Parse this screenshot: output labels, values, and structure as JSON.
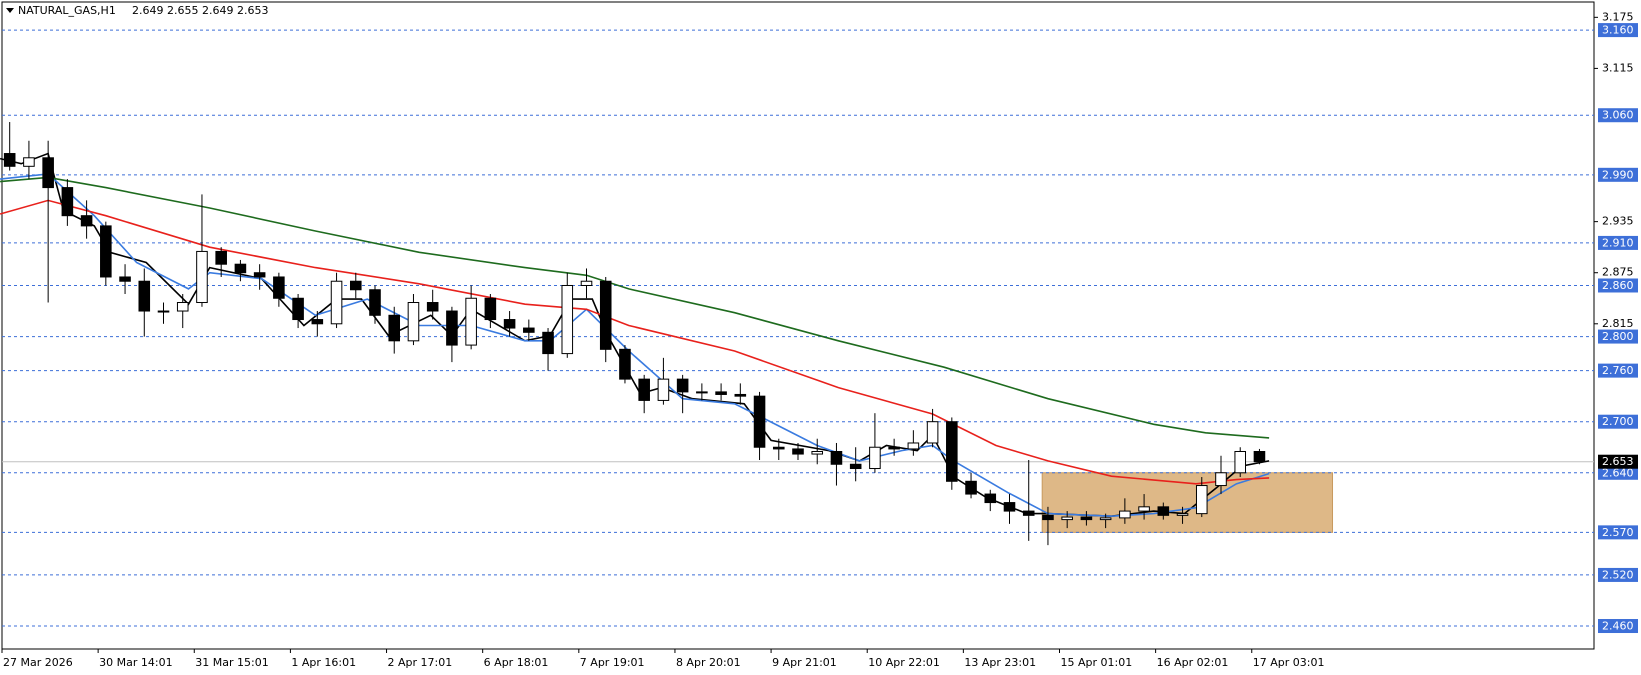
{
  "chart_data": {
    "type": "candlestick",
    "title": "NATURAL_GAS,H1",
    "subtitle": "2.649 2.655 2.649 2.653",
    "x": [
      0,
      1,
      2,
      3,
      4,
      5,
      6,
      7,
      8,
      9,
      10,
      11,
      12,
      13,
      14,
      15,
      16,
      17,
      18,
      19,
      20,
      21,
      22,
      23,
      24,
      25,
      26,
      27,
      28,
      29,
      30,
      31,
      32,
      33,
      34,
      35,
      36,
      37,
      38,
      39,
      40,
      41,
      42,
      43,
      44,
      45,
      46,
      47,
      48,
      49,
      50,
      51,
      52,
      53,
      54,
      55,
      56,
      57,
      58,
      59,
      60,
      61,
      62,
      63,
      64,
      65
    ],
    "open": [
      3.015,
      3.0,
      3.01,
      2.975,
      2.942,
      2.93,
      2.87,
      2.865,
      2.83,
      2.83,
      2.84,
      2.9,
      2.885,
      2.875,
      2.87,
      2.845,
      2.82,
      2.815,
      2.865,
      2.855,
      2.825,
      2.795,
      2.84,
      2.83,
      2.79,
      2.845,
      2.82,
      2.81,
      2.805,
      2.78,
      2.86,
      2.865,
      2.785,
      2.75,
      2.725,
      2.75,
      2.735,
      2.735,
      2.732,
      2.73,
      2.67,
      2.668,
      2.662,
      2.665,
      2.65,
      2.645,
      2.67,
      2.668,
      2.675,
      2.7,
      2.63,
      2.615,
      2.605,
      2.595,
      2.59,
      2.585,
      2.588,
      2.585,
      2.587,
      2.595,
      2.6,
      2.59,
      2.592,
      2.625,
      2.64,
      2.665
    ],
    "high": [
      3.052,
      3.03,
      3.03,
      2.985,
      2.96,
      2.935,
      2.885,
      2.88,
      2.84,
      2.85,
      2.967,
      2.905,
      2.89,
      2.885,
      2.875,
      2.85,
      2.83,
      2.875,
      2.875,
      2.86,
      2.835,
      2.85,
      2.855,
      2.835,
      2.86,
      2.85,
      2.83,
      2.82,
      2.81,
      2.875,
      2.88,
      2.87,
      2.79,
      2.755,
      2.775,
      2.755,
      2.745,
      2.745,
      2.745,
      2.735,
      2.68,
      2.675,
      2.68,
      2.675,
      2.67,
      2.71,
      2.68,
      2.69,
      2.715,
      2.705,
      2.64,
      2.62,
      2.615,
      2.655,
      2.6,
      2.595,
      2.595,
      2.592,
      2.61,
      2.615,
      2.605,
      2.6,
      2.635,
      2.66,
      2.67,
      2.668
    ],
    "low": [
      2.995,
      2.985,
      2.84,
      2.93,
      2.915,
      2.86,
      2.85,
      2.8,
      2.815,
      2.81,
      2.835,
      2.87,
      2.865,
      2.855,
      2.835,
      2.81,
      2.8,
      2.81,
      2.845,
      2.815,
      2.78,
      2.79,
      2.82,
      2.77,
      2.785,
      2.81,
      2.8,
      2.795,
      2.76,
      2.775,
      2.845,
      2.77,
      2.745,
      2.71,
      2.72,
      2.71,
      2.725,
      2.725,
      2.72,
      2.655,
      2.655,
      2.655,
      2.65,
      2.625,
      2.63,
      2.64,
      2.66,
      2.66,
      2.67,
      2.62,
      2.61,
      2.595,
      2.58,
      2.56,
      2.555,
      2.575,
      2.578,
      2.575,
      2.58,
      2.585,
      2.585,
      2.58,
      2.588,
      2.615,
      2.635,
      2.65
    ],
    "close": [
      3.0,
      3.01,
      2.975,
      2.942,
      2.93,
      2.87,
      2.865,
      2.83,
      2.83,
      2.84,
      2.9,
      2.885,
      2.875,
      2.87,
      2.845,
      2.82,
      2.815,
      2.865,
      2.855,
      2.825,
      2.795,
      2.84,
      2.83,
      2.79,
      2.845,
      2.82,
      2.81,
      2.805,
      2.78,
      2.86,
      2.865,
      2.785,
      2.75,
      2.725,
      2.75,
      2.735,
      2.735,
      2.732,
      2.73,
      2.67,
      2.668,
      2.662,
      2.665,
      2.65,
      2.645,
      2.67,
      2.668,
      2.675,
      2.7,
      2.63,
      2.615,
      2.605,
      2.595,
      2.59,
      2.585,
      2.588,
      2.585,
      2.587,
      2.595,
      2.6,
      2.59,
      2.592,
      2.625,
      2.64,
      2.665,
      2.653
    ],
    "up_color": "#ffffff",
    "down_color": "#000000",
    "series": [
      {
        "color": "#000000",
        "x": [
          -0.5,
          0.6,
          2.0,
          2.8,
          4.4,
          5.2,
          7.1,
          9.3,
          10.4,
          13.1,
          15.3,
          17.0,
          18.3,
          19.7,
          21.9,
          23.0,
          24.0,
          26.8,
          28.1,
          29.2,
          30.3,
          31.1,
          32.8,
          33.9,
          35.5,
          38.2,
          39.6,
          42.6,
          44.2,
          45.6,
          47.2,
          48.0,
          49.1,
          50.8,
          52.9,
          54.0,
          57.3,
          59.5,
          61.1,
          62.8,
          64.1,
          65.5
        ],
        "values": [
          3.009,
          3.003,
          3.015,
          2.948,
          2.93,
          2.899,
          2.887,
          2.838,
          2.881,
          2.868,
          2.813,
          2.844,
          2.844,
          2.801,
          2.825,
          2.801,
          2.832,
          2.795,
          2.801,
          2.844,
          2.844,
          2.801,
          2.733,
          2.74,
          2.727,
          2.721,
          2.678,
          2.666,
          2.654,
          2.672,
          2.666,
          2.684,
          2.635,
          2.611,
          2.592,
          2.592,
          2.589,
          2.595,
          2.592,
          2.623,
          2.648,
          2.654
        ]
      },
      {
        "color": "#3a7be0",
        "x": [
          -0.5,
          2.0,
          4.4,
          6.6,
          9.3,
          10.4,
          13.1,
          15.9,
          18.6,
          21.3,
          24.0,
          26.8,
          28.1,
          30.0,
          32.2,
          35.0,
          37.7,
          39.3,
          42.0,
          44.2,
          46.4,
          48.0,
          49.1,
          51.9,
          54.0,
          57.3,
          59.5,
          61.7,
          63.8,
          65.5
        ],
        "values": [
          2.985,
          2.991,
          2.942,
          2.887,
          2.856,
          2.875,
          2.868,
          2.825,
          2.844,
          2.813,
          2.813,
          2.795,
          2.795,
          2.832,
          2.783,
          2.727,
          2.721,
          2.703,
          2.672,
          2.654,
          2.666,
          2.672,
          2.654,
          2.617,
          2.592,
          2.589,
          2.592,
          2.599,
          2.627,
          2.639
        ]
      },
      {
        "color": "#e8211c",
        "x": [
          -0.5,
          2.0,
          5.0,
          10.4,
          15.9,
          21.3,
          26.8,
          30.0,
          32.2,
          37.7,
          43.1,
          48.0,
          51.3,
          54.0,
          57.3,
          61.7,
          63.8,
          65.5
        ],
        "values": [
          2.944,
          2.96,
          2.942,
          2.905,
          2.881,
          2.862,
          2.838,
          2.832,
          2.813,
          2.783,
          2.74,
          2.709,
          2.672,
          2.654,
          2.636,
          2.627,
          2.632,
          2.634
        ]
      },
      {
        "color": "#1e6b1e",
        "x": [
          -0.5,
          2.0,
          5.0,
          10.4,
          15.9,
          21.3,
          26.8,
          30.0,
          32.2,
          37.7,
          43.1,
          48.6,
          54.0,
          59.5,
          62.2,
          65.5
        ],
        "values": [
          2.982,
          2.987,
          2.975,
          2.951,
          2.924,
          2.899,
          2.881,
          2.872,
          2.856,
          2.828,
          2.795,
          2.764,
          2.727,
          2.697,
          2.687,
          2.681
        ]
      }
    ],
    "zone": {
      "x": [
        53.7,
        68.8
      ],
      "y": [
        2.57,
        2.64
      ],
      "color": "#deb887"
    },
    "xlim": [
      -0.4,
      82.4
    ],
    "ylim": [
      2.433,
      3.193
    ],
    "yticks": [
      3.175,
      3.115,
      2.935,
      2.875,
      2.815
    ],
    "levels": [
      {
        "value": 3.16,
        "label": "3.160"
      },
      {
        "value": 3.06,
        "label": "3.060"
      },
      {
        "value": 2.99,
        "label": "2.990"
      },
      {
        "value": 2.91,
        "label": "2.910"
      },
      {
        "value": 2.86,
        "label": "2.860"
      },
      {
        "value": 2.8,
        "label": "2.800"
      },
      {
        "value": 2.76,
        "label": "2.760"
      },
      {
        "value": 2.7,
        "label": "2.700"
      },
      {
        "value": 2.64,
        "label": "2.640"
      },
      {
        "value": 2.57,
        "label": "2.570"
      },
      {
        "value": 2.52,
        "label": "2.520"
      },
      {
        "value": 2.46,
        "label": "2.460"
      }
    ],
    "level_color": "#3d6fd8",
    "current": {
      "value": 2.653,
      "label": "2.653"
    },
    "xticks": [
      {
        "value": -0.4,
        "label": "27 Mar 2026"
      },
      {
        "value": 4.6,
        "label": "30 Mar 14:01"
      },
      {
        "value": 9.6,
        "label": "31 Mar 15:01"
      },
      {
        "value": 14.6,
        "label": "1 Apr 16:01"
      },
      {
        "value": 19.6,
        "label": "2 Apr 17:01"
      },
      {
        "value": 24.6,
        "label": "6 Apr 18:01"
      },
      {
        "value": 29.6,
        "label": "7 Apr 19:01"
      },
      {
        "value": 34.6,
        "label": "8 Apr 20:01"
      },
      {
        "value": 39.6,
        "label": "9 Apr 21:01"
      },
      {
        "value": 44.6,
        "label": "10 Apr 22:01"
      },
      {
        "value": 49.6,
        "label": "13 Apr 23:01"
      },
      {
        "value": 54.6,
        "label": "15 Apr 01:01"
      },
      {
        "value": 59.6,
        "label": "16 Apr 02:01"
      },
      {
        "value": 64.6,
        "label": "17 Apr 03:01"
      }
    ]
  }
}
